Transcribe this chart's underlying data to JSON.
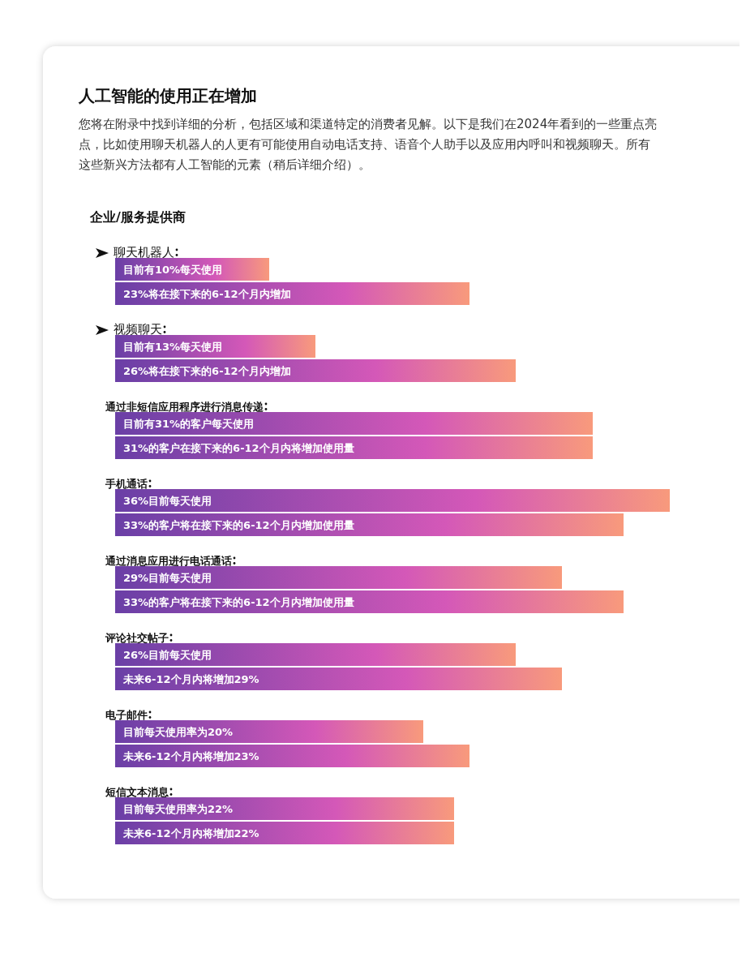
{
  "chart_data": {
    "type": "bar",
    "orientation": "horizontal",
    "title": "人工智能的使用正在增加",
    "subtitle": "您将在附录中找到详细的分析，包括区域和渠道特定的消费者见解。以下是我们在2024年看到的一些重点亮点，比如使用聊天机器人的人更有可能使用自动电话支持、语音个人助手以及应用内呼叫和视频聊天。所有这些新兴方法都有人工智能的元素（稍后详细介绍）。",
    "annotations": [
      "企业/服务提供商"
    ],
    "categories": [
      "聊天机器人",
      "视频聊天",
      "通过非短信应用程序进行消息传递",
      "手机通话",
      "通过消息应用进行电话通话",
      "评论社交帖子",
      "电子邮件",
      "短信文本消息"
    ],
    "series": [
      {
        "color": "#6a3fa6",
        "values": [
          10,
          13,
          31,
          36,
          29,
          26,
          20,
          22
        ],
        "value_labels": [
          "目前有10%每天使用",
          "目前有13%每天使用",
          "目前有31%的客户每天使用",
          "36%目前每天使用",
          "29%目前每天使用",
          "26%目前每天使用",
          "目前每天使用率为20%",
          "目前每天使用率为22%"
        ]
      },
      {
        "color": "#6a3fa6",
        "values": [
          23,
          26,
          31,
          33,
          33,
          29,
          23,
          22
        ],
        "value_labels": [
          "23%将在接下来的6-12个月内增加",
          "26%将在接下来的6-12个月内增加",
          "31%的客户在接下来的6-12个月内将增加使用量",
          "33%的客户将在接下来的6-12个月内增加使用量",
          "33%的客户将在接下来的6-12个月内增加使用量",
          "未来6-12个月内将增加29%",
          "未来6-12个月内将增加23%",
          "未来6-12个月内将增加22%"
        ]
      }
    ]
  }
}
